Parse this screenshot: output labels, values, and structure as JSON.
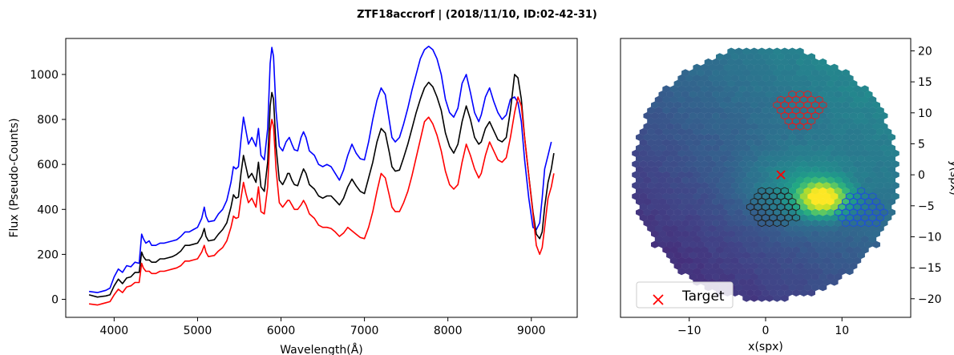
{
  "figure": {
    "title": "ZTF18accrorf | (2018/11/10, ID:02-42-31)"
  },
  "chart_data": [
    {
      "type": "line",
      "xlabel": "Wavelength(Å)",
      "ylabel": "Flux (Pseudo-Counts)",
      "xlim": [
        3420,
        9550
      ],
      "ylim": [
        -80,
        1160
      ],
      "xticks": [
        4000,
        5000,
        6000,
        7000,
        8000,
        9000
      ],
      "yticks": [
        0,
        200,
        400,
        600,
        800,
        1000
      ],
      "colors": {
        "blue": "#0000ff",
        "black": "#000000",
        "red": "#ff0000"
      },
      "wavelength": [
        3700,
        3800,
        3900,
        3950,
        4000,
        4050,
        4100,
        4150,
        4200,
        4250,
        4300,
        4330,
        4350,
        4380,
        4420,
        4450,
        4500,
        4550,
        4600,
        4650,
        4700,
        4750,
        4800,
        4850,
        4900,
        4950,
        5000,
        5050,
        5080,
        5100,
        5130,
        5200,
        5250,
        5300,
        5350,
        5400,
        5430,
        5460,
        5490,
        5520,
        5550,
        5580,
        5610,
        5650,
        5700,
        5730,
        5760,
        5800,
        5840,
        5870,
        5890,
        5910,
        5940,
        5980,
        6020,
        6060,
        6080,
        6100,
        6130,
        6160,
        6200,
        6240,
        6270,
        6300,
        6340,
        6400,
        6450,
        6500,
        6550,
        6600,
        6650,
        6700,
        6750,
        6800,
        6850,
        6900,
        6950,
        7000,
        7050,
        7100,
        7150,
        7200,
        7250,
        7300,
        7330,
        7370,
        7420,
        7470,
        7520,
        7570,
        7620,
        7670,
        7720,
        7770,
        7820,
        7870,
        7920,
        7970,
        8020,
        8070,
        8120,
        8170,
        8220,
        8270,
        8320,
        8370,
        8400,
        8450,
        8500,
        8550,
        8600,
        8650,
        8700,
        8750,
        8800,
        8840,
        8880,
        8920,
        8970,
        9020,
        9060,
        9100,
        9130,
        9160,
        9200,
        9240,
        9270,
        9300
      ],
      "series": [
        {
          "color": "blue",
          "values": [
            35,
            30,
            40,
            50,
            100,
            135,
            120,
            150,
            145,
            165,
            160,
            290,
            270,
            250,
            260,
            240,
            240,
            250,
            250,
            255,
            260,
            265,
            280,
            300,
            300,
            310,
            320,
            360,
            410,
            370,
            345,
            350,
            380,
            400,
            440,
            520,
            590,
            580,
            590,
            710,
            810,
            750,
            690,
            720,
            680,
            760,
            640,
            620,
            760,
            1050,
            1120,
            1080,
            840,
            680,
            660,
            700,
            710,
            720,
            690,
            665,
            660,
            720,
            745,
            720,
            660,
            640,
            600,
            590,
            600,
            590,
            560,
            530,
            575,
            640,
            690,
            650,
            625,
            620,
            700,
            800,
            885,
            940,
            910,
            790,
            720,
            700,
            720,
            780,
            850,
            930,
            1000,
            1070,
            1110,
            1125,
            1110,
            1070,
            1000,
            890,
            830,
            810,
            850,
            960,
            1000,
            920,
            830,
            790,
            820,
            900,
            940,
            880,
            830,
            800,
            820,
            890,
            900,
            875,
            790,
            620,
            450,
            320,
            310,
            340,
            450,
            580,
            640,
            700
          ]
        },
        {
          "color": "black",
          "values": [
            20,
            10,
            15,
            20,
            60,
            90,
            70,
            95,
            100,
            120,
            120,
            210,
            190,
            175,
            175,
            165,
            165,
            180,
            180,
            185,
            190,
            200,
            215,
            240,
            240,
            245,
            250,
            280,
            315,
            280,
            260,
            265,
            290,
            310,
            340,
            410,
            465,
            450,
            455,
            560,
            640,
            590,
            540,
            560,
            520,
            610,
            500,
            480,
            610,
            860,
            920,
            890,
            680,
            530,
            510,
            540,
            560,
            560,
            530,
            510,
            505,
            550,
            580,
            560,
            510,
            490,
            460,
            450,
            460,
            460,
            440,
            420,
            450,
            500,
            535,
            505,
            480,
            470,
            540,
            610,
            700,
            760,
            740,
            650,
            590,
            570,
            575,
            630,
            690,
            760,
            830,
            890,
            940,
            965,
            945,
            900,
            840,
            740,
            680,
            650,
            690,
            790,
            860,
            800,
            720,
            690,
            700,
            760,
            790,
            750,
            710,
            700,
            720,
            840,
            1000,
            985,
            890,
            720,
            550,
            390,
            290,
            270,
            300,
            410,
            520,
            580,
            650
          ]
        },
        {
          "color": "red",
          "values": [
            -20,
            -25,
            -15,
            -10,
            20,
            45,
            30,
            55,
            60,
            75,
            75,
            160,
            140,
            125,
            125,
            115,
            115,
            125,
            125,
            130,
            135,
            140,
            150,
            170,
            170,
            175,
            180,
            210,
            240,
            210,
            190,
            195,
            215,
            230,
            260,
            320,
            370,
            360,
            365,
            450,
            520,
            470,
            430,
            450,
            410,
            500,
            390,
            380,
            500,
            750,
            800,
            770,
            580,
            430,
            410,
            430,
            440,
            440,
            420,
            400,
            400,
            420,
            440,
            420,
            380,
            360,
            330,
            320,
            320,
            315,
            300,
            280,
            295,
            320,
            305,
            290,
            275,
            270,
            320,
            390,
            480,
            560,
            540,
            460,
            410,
            390,
            390,
            430,
            480,
            550,
            630,
            710,
            790,
            810,
            780,
            730,
            660,
            570,
            510,
            490,
            510,
            610,
            690,
            640,
            580,
            540,
            560,
            640,
            700,
            660,
            620,
            610,
            630,
            720,
            830,
            900,
            860,
            720,
            550,
            380,
            240,
            200,
            230,
            320,
            450,
            500,
            560
          ]
        }
      ]
    },
    {
      "type": "scatter",
      "xlabel": "x(spx)",
      "ylabel": "y(spx)",
      "xlim": [
        -19,
        19
      ],
      "ylim": [
        -23,
        22
      ],
      "xticks": [
        -10,
        0,
        10
      ],
      "yticks": [
        -20,
        -15,
        -10,
        -5,
        0,
        5,
        10,
        15,
        20
      ],
      "target": {
        "x": 2,
        "y": 0
      },
      "legend": {
        "label": "Target",
        "position": "lower-left"
      },
      "aperture_colors": {
        "red": "#e02020",
        "black": "#222222",
        "blue": "#1f4fd8"
      },
      "apertures": [
        {
          "color": "red",
          "center": [
            4.5,
            10.5
          ],
          "radius": 3.1
        },
        {
          "color": "black",
          "center": [
            1.2,
            -5.3
          ],
          "radius": 3.3
        },
        {
          "color": "blue",
          "center": [
            12.5,
            -5.6
          ],
          "radius": 3.1
        }
      ]
    }
  ]
}
